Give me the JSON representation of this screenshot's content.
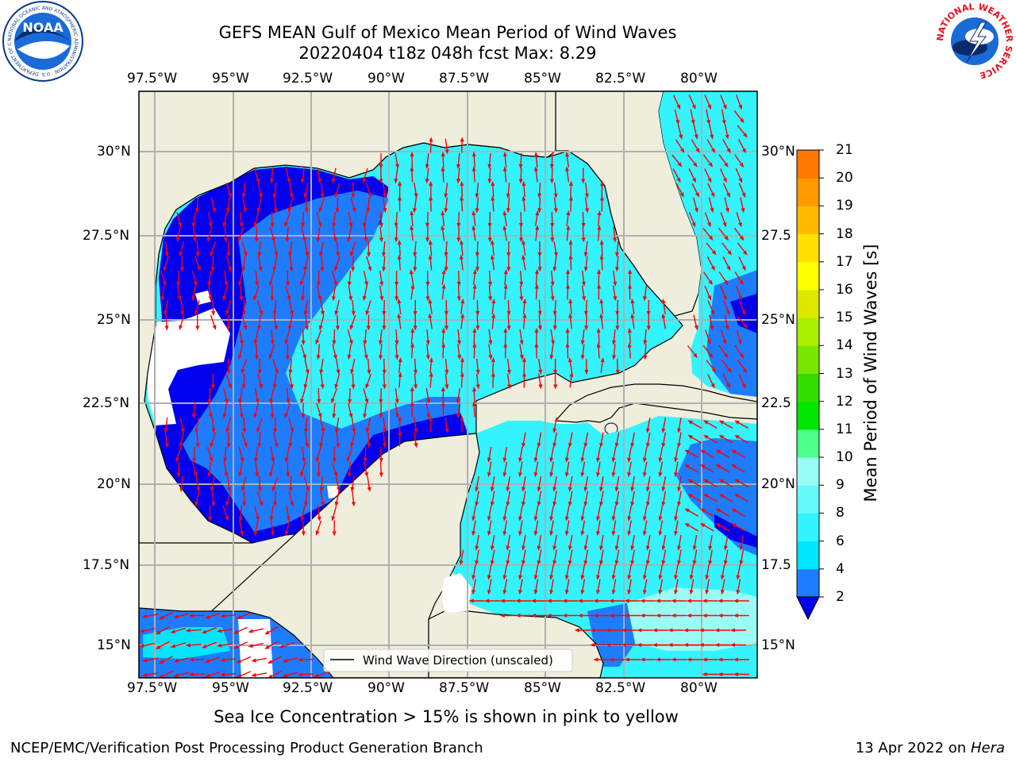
{
  "title": {
    "line1": "GEFS MEAN Gulf of Mexico Mean Period of Wind Waves",
    "line2": "20220404 t18z 048h fcst   Max: 8.29"
  },
  "logos": {
    "noaa_text": "NOAA",
    "noaa_ring_text": "NATIONAL OCEANIC AND ATMOSPHERIC ADMINISTRATION · U.S. DEPARTMENT OF COMMERCE",
    "nws_ring_text": "NATIONAL WEATHER SERVICE"
  },
  "map": {
    "lon_labels": [
      "97.5°W",
      "95°W",
      "92.5°W",
      "90°W",
      "87.5°W",
      "85°W",
      "82.5°W",
      "80°W"
    ],
    "lat_labels": [
      "30°N",
      "27.5°N",
      "25°N",
      "22.5°N",
      "20°N",
      "17.5°N",
      "15°N"
    ],
    "lat_labels_right": [
      "30°N",
      "27.5",
      "25°N",
      "22.5",
      "20°N",
      "17.5",
      "15°N"
    ],
    "legend_text": "Wind Wave Direction (unscaled)",
    "colors": {
      "land": "#efeddc",
      "ocean_2_4": "#0000ee",
      "ocean_4_6": "#1e7cff",
      "ocean_6_8": "#00ffff",
      "ocean_8_9": "#4dfcfc",
      "ocean_9_10": "#99fcfc",
      "arrows": "#ff0000"
    }
  },
  "colorbar": {
    "title": "Mean Period of Wind Waves [s]",
    "ticks": [
      "2",
      "4",
      "6",
      "8",
      "9",
      "10",
      "11",
      "12",
      "13",
      "14",
      "15",
      "16",
      "17",
      "18",
      "19",
      "20",
      "21"
    ],
    "colors": [
      "#1e7cff",
      "#00e6ff",
      "#33f3ff",
      "#66f9fb",
      "#99fcf5",
      "#4dff8a",
      "#00e600",
      "#33dd00",
      "#77e600",
      "#aaee00",
      "#dde800",
      "#ffff00",
      "#ffe000",
      "#ffbb00",
      "#ff9900",
      "#ff7700",
      "#ff4400",
      "#ff0000"
    ],
    "extend_color": "#0000ee"
  },
  "subtitle": "Sea Ice Concentration > 15% is shown in pink to yellow",
  "footer": {
    "left": "NCEP/EMC/Verification Post Processing Product Generation Branch",
    "right_date": "13 Apr 2022 on ",
    "right_host": "Hera"
  }
}
